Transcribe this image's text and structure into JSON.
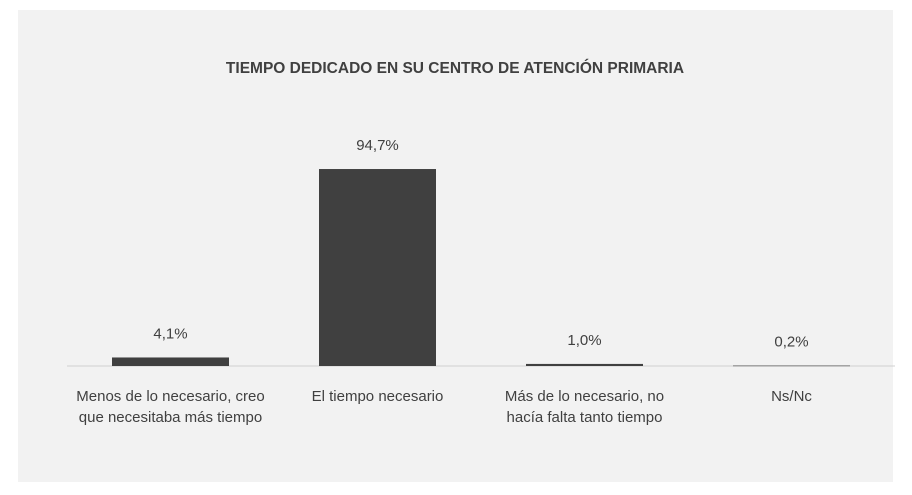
{
  "chart_data": {
    "type": "bar",
    "title": "TIEMPO DEDICADO EN SU CENTRO DE ATENCIÓN PRIMARIA",
    "categories": [
      "Menos de lo necesario, creo que necesitaba más tiempo",
      "El tiempo necesario",
      "Más de lo necesario, no hacía falta tanto tiempo",
      "Ns/Nc"
    ],
    "values": [
      4.1,
      94.7,
      1.0,
      0.2
    ],
    "value_labels": [
      "4,1%",
      "94,7%",
      "1,0%",
      "0,2%"
    ],
    "color": "#404040",
    "ylim": [
      0,
      100
    ]
  }
}
